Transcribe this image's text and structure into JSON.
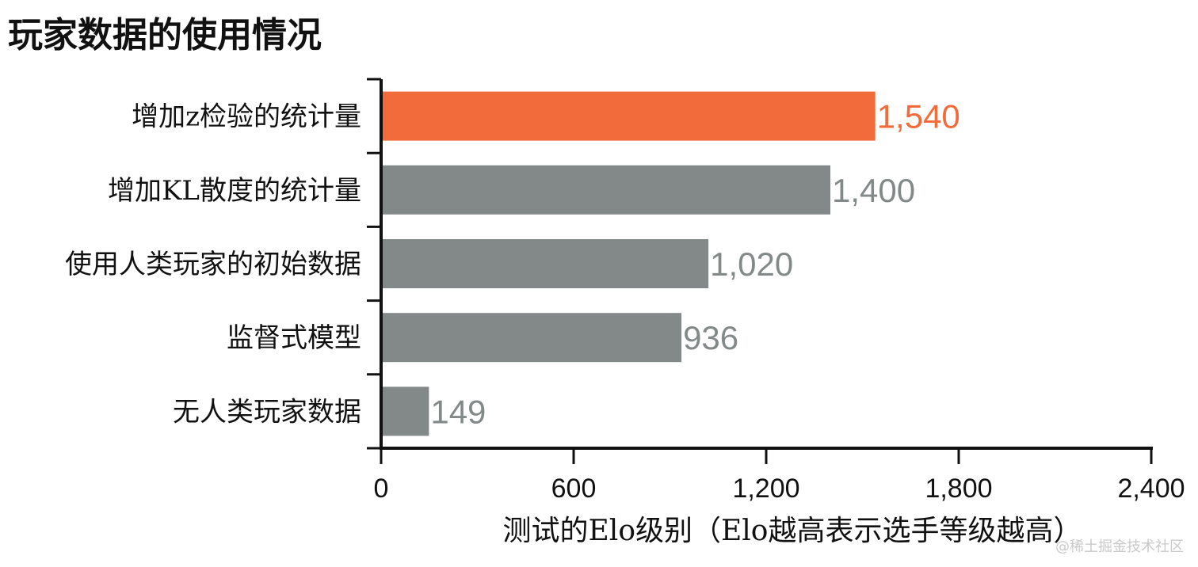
{
  "chart_data": {
    "type": "bar",
    "orientation": "horizontal",
    "title": "玩家数据的使用情况",
    "categories": [
      "增加z检验的统计量",
      "增加KL散度的统计量",
      "使用人类玩家的初始数据",
      "监督式模型",
      "无人类玩家数据"
    ],
    "values": [
      1540,
      1400,
      1020,
      936,
      149
    ],
    "value_labels": [
      "1,540",
      "1,400",
      "1,020",
      "936",
      "149"
    ],
    "colors": [
      "#f26b3a",
      "#838889",
      "#838889",
      "#838889",
      "#838889"
    ],
    "xlabel": "测试的Elo级别（Elo越高表示选手等级越高）",
    "xlim": [
      0,
      2400
    ],
    "xticks": [
      0,
      600,
      1200,
      1800,
      2400
    ],
    "xtick_labels": [
      "0",
      "600",
      "1,200",
      "1,800",
      "2,400"
    ],
    "grid": false,
    "legend": "none"
  },
  "watermark": "@稀土掘金技术社区"
}
